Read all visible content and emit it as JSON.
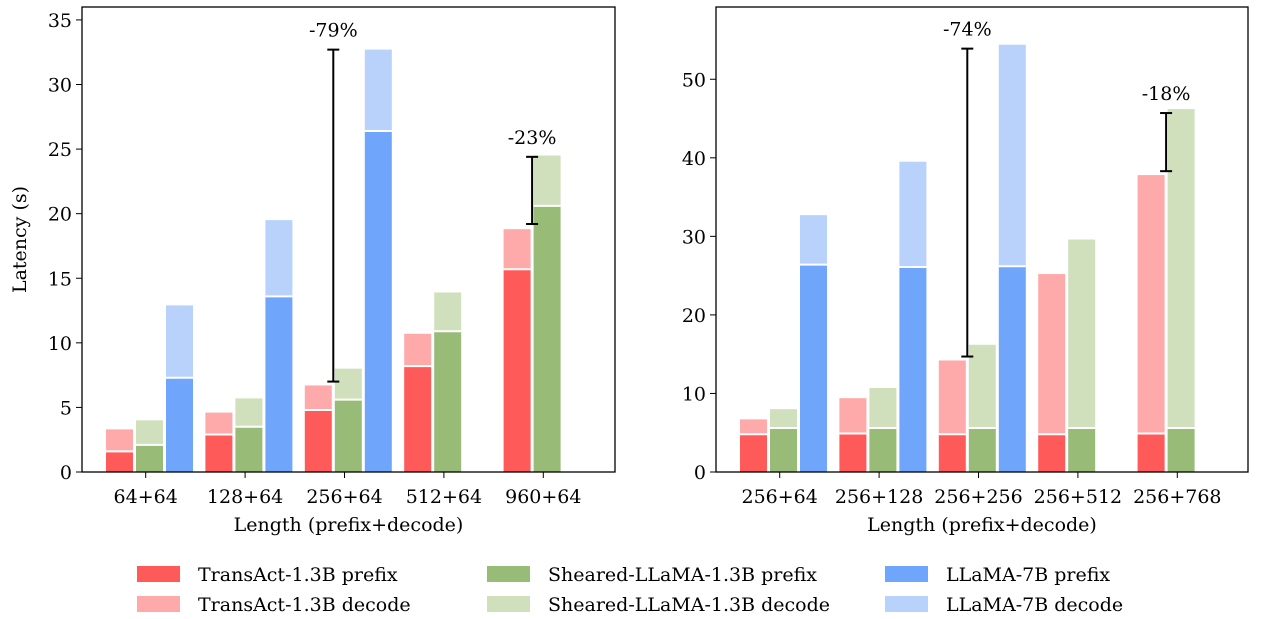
{
  "colors": {
    "transact_prefix": "#ff5a5a",
    "transact_decode": "#ffaaaa",
    "sheared_prefix": "#98bb78",
    "sheared_decode": "#d0e0bc",
    "llama_prefix": "#6fa5fb",
    "llama_decode": "#b8d2fc"
  },
  "legend": [
    {
      "label": "TransAct-1.3B prefix",
      "color_key": "transact_prefix"
    },
    {
      "label": "TransAct-1.3B decode",
      "color_key": "transact_decode"
    },
    {
      "label": "Sheared-LLaMA-1.3B prefix",
      "color_key": "sheared_prefix"
    },
    {
      "label": "Sheared-LLaMA-1.3B decode",
      "color_key": "sheared_decode"
    },
    {
      "label": "LLaMA-7B prefix",
      "color_key": "llama_prefix"
    },
    {
      "label": "LLaMA-7B decode",
      "color_key": "llama_decode"
    }
  ],
  "chart_data": [
    {
      "type": "bar",
      "stacked": true,
      "xlabel": "Length (prefix+decode)",
      "ylabel": "Latency (s)",
      "ylim": [
        0,
        36
      ],
      "yticks": [
        0,
        5,
        10,
        15,
        20,
        25,
        30,
        35
      ],
      "categories": [
        "64+64",
        "128+64",
        "256+64",
        "512+64",
        "960+64"
      ],
      "models": [
        {
          "name": "TransAct-1.3B",
          "prefix": [
            1.6,
            2.9,
            4.8,
            8.2,
            15.7
          ],
          "total": [
            3.3,
            4.6,
            6.7,
            10.7,
            18.8
          ],
          "prefix_key": "transact_prefix",
          "decode_key": "transact_decode"
        },
        {
          "name": "Sheared-LLaMA-1.3B",
          "prefix": [
            2.1,
            3.5,
            5.6,
            10.9,
            20.6
          ],
          "total": [
            4.0,
            5.7,
            8.0,
            13.9,
            24.5
          ],
          "prefix_key": "sheared_prefix",
          "decode_key": "sheared_decode"
        },
        {
          "name": "LLaMA-7B",
          "prefix": [
            7.3,
            13.6,
            26.4,
            null,
            null
          ],
          "total": [
            12.9,
            19.5,
            32.7,
            null,
            null
          ],
          "prefix_key": "llama_prefix",
          "decode_key": "llama_decode"
        }
      ],
      "annotations": [
        {
          "text": "-79%",
          "category": 2,
          "from": 7.0,
          "to": 32.7
        },
        {
          "text": "-23%",
          "category": 4,
          "from": 19.2,
          "to": 24.4
        }
      ]
    },
    {
      "type": "bar",
      "stacked": true,
      "xlabel": "Length (prefix+decode)",
      "ylabel": "",
      "ylim": [
        0,
        59.2
      ],
      "yticks": [
        0,
        10,
        20,
        30,
        40,
        50
      ],
      "categories": [
        "256+64",
        "256+128",
        "256+256",
        "256+512",
        "256+768"
      ],
      "models": [
        {
          "name": "TransAct-1.3B",
          "prefix": [
            4.8,
            4.9,
            4.8,
            4.8,
            4.9
          ],
          "total": [
            6.7,
            9.4,
            14.2,
            25.2,
            37.8
          ],
          "prefix_key": "transact_prefix",
          "decode_key": "transact_decode"
        },
        {
          "name": "Sheared-LLaMA-1.3B",
          "prefix": [
            5.6,
            5.6,
            5.6,
            5.6,
            5.6
          ],
          "total": [
            8.0,
            10.7,
            16.2,
            29.6,
            46.2
          ],
          "prefix_key": "sheared_prefix",
          "decode_key": "sheared_decode"
        },
        {
          "name": "LLaMA-7B",
          "prefix": [
            26.4,
            26.1,
            26.2,
            null,
            null
          ],
          "total": [
            32.7,
            39.5,
            54.4,
            null,
            null
          ],
          "prefix_key": "llama_prefix",
          "decode_key": "llama_decode"
        }
      ],
      "annotations": [
        {
          "text": "-74%",
          "category": 2,
          "from": 14.7,
          "to": 53.9
        },
        {
          "text": "-18%",
          "category": 4,
          "from": 38.3,
          "to": 45.7
        }
      ]
    }
  ]
}
